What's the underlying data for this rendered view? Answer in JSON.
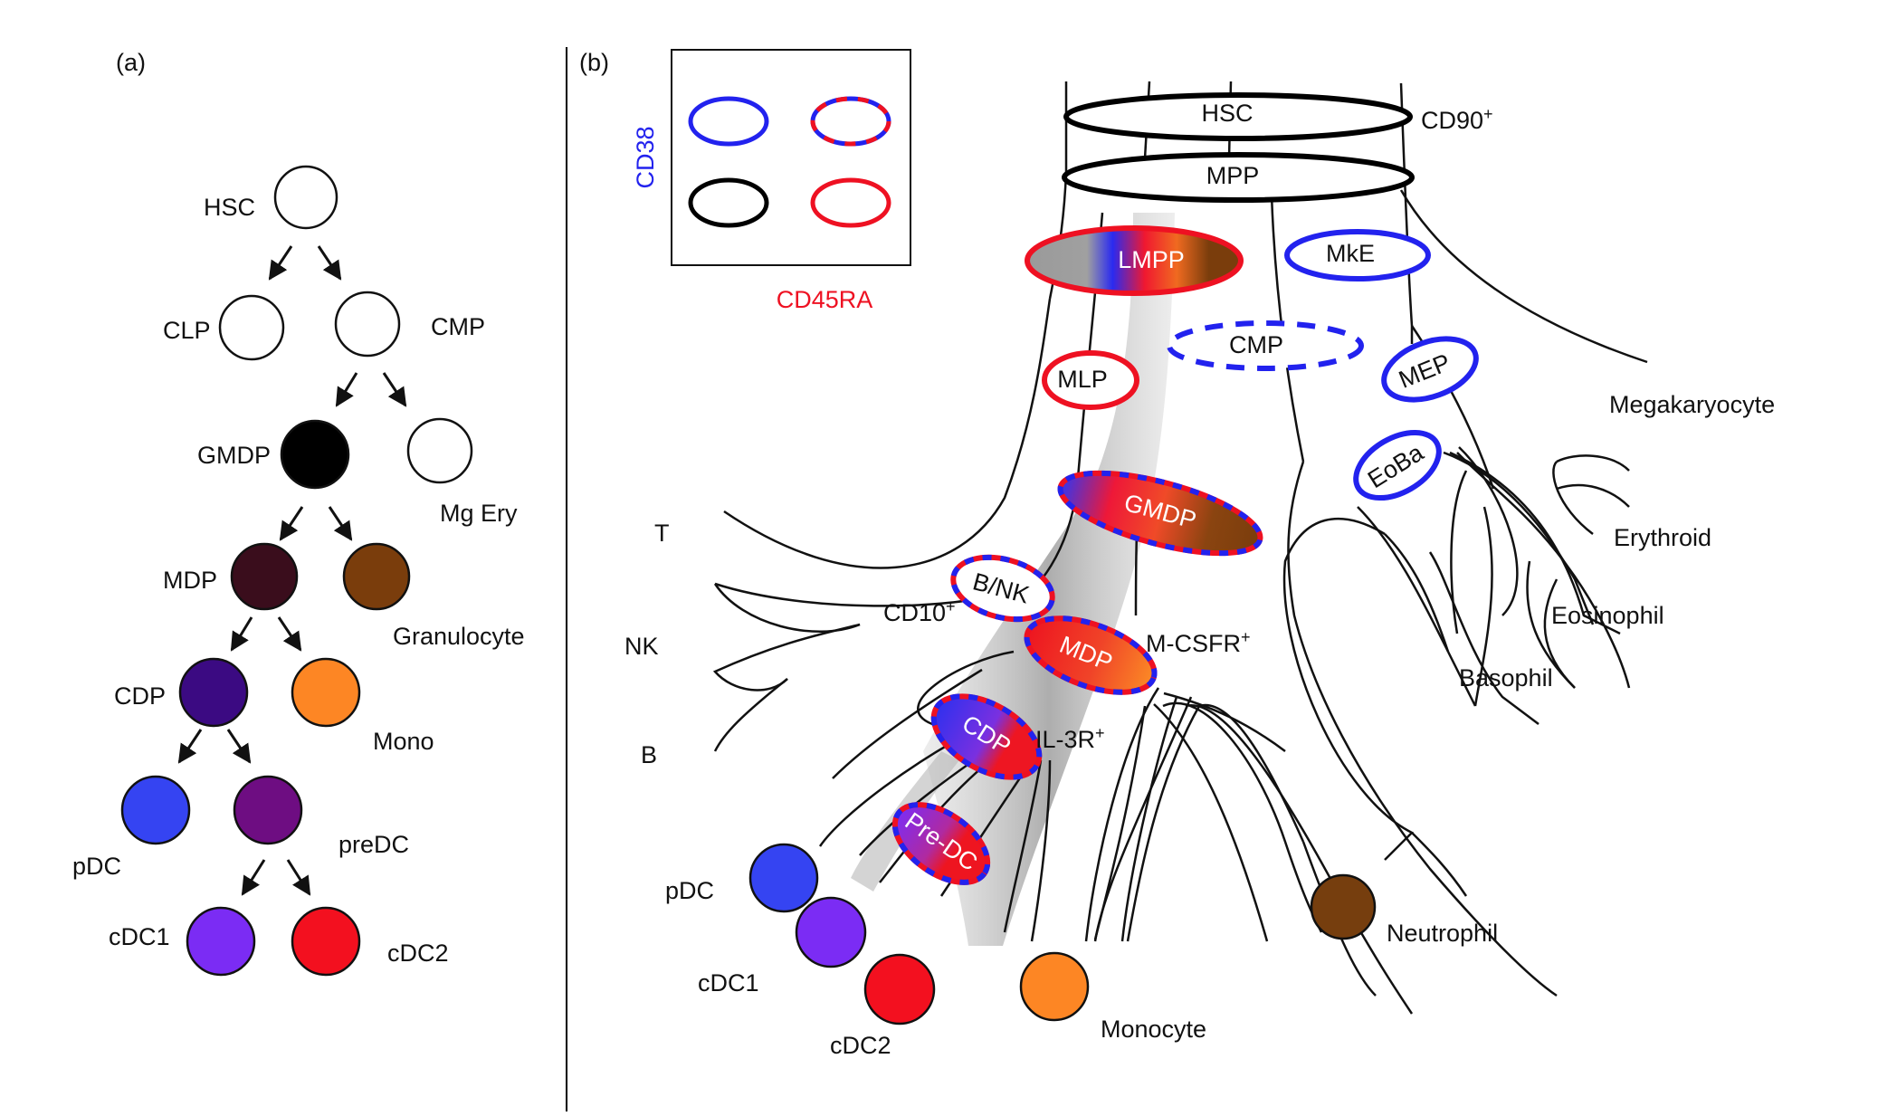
{
  "panel_a": {
    "label": "(a)",
    "nodes": {
      "hsc": "HSC",
      "clp": "CLP",
      "cmp": "CMP",
      "gmdp": "GMDP",
      "mgery": "Mg Ery",
      "mdp": "MDP",
      "granulocyte": "Granulocyte",
      "cdp": "CDP",
      "mono": "Mono",
      "pdc": "pDC",
      "predc": "preDC",
      "cdc1": "cDC1",
      "cdc2": "cDC2"
    }
  },
  "panel_b": {
    "label": "(b)",
    "legend": {
      "y_axis": "CD38",
      "x_axis": "CD45RA"
    },
    "progenitors": {
      "hsc": "HSC",
      "mpp": "MPP",
      "lmpp": "LMPP",
      "mke": "MkE",
      "cmp": "CMP",
      "mlp": "MLP",
      "mep": "MEP",
      "eoba": "EoBa",
      "gmdp": "GMDP",
      "bnk": "B/NK",
      "mdp": "MDP",
      "cdp": "CDP",
      "predc": "Pre-DC"
    },
    "markers": {
      "cd90": "CD90",
      "cd90_sup": "+",
      "cd10": "CD10",
      "cd10_sup": "+",
      "mcsfr": "M-CSFR",
      "mcsfr_sup": "+",
      "il3r": "IL-3R",
      "il3r_sup": "+"
    },
    "lineages": {
      "t": "T",
      "nk": "NK",
      "b": "B",
      "pdc": "pDC",
      "cdc1": "cDC1",
      "cdc2": "cDC2",
      "monocyte": "Monocyte",
      "neutrophil": "Neutrophil",
      "megakaryocyte": "Megakaryocyte",
      "erythroid": "Erythroid",
      "eosinophil": "Eosinophil",
      "basophil": "Basophil"
    }
  },
  "colors": {
    "cd38_blue": "#2222ee",
    "cd45ra_red": "#ee1122",
    "black": "#000000",
    "gmdp_fill": "#000000",
    "mdp_fill": "#3a0d1c",
    "granulocyte_fill": "#7a3d0c",
    "cdp_fill": "#3b0a82",
    "mono_fill": "#fd8624",
    "pdc_fill": "#3544f2",
    "predc_fill": "#6e0d82",
    "cdc1_fill": "#7b2cf4",
    "cdc2_fill": "#f3101f",
    "neutrophil_fill": "#763e0e"
  }
}
